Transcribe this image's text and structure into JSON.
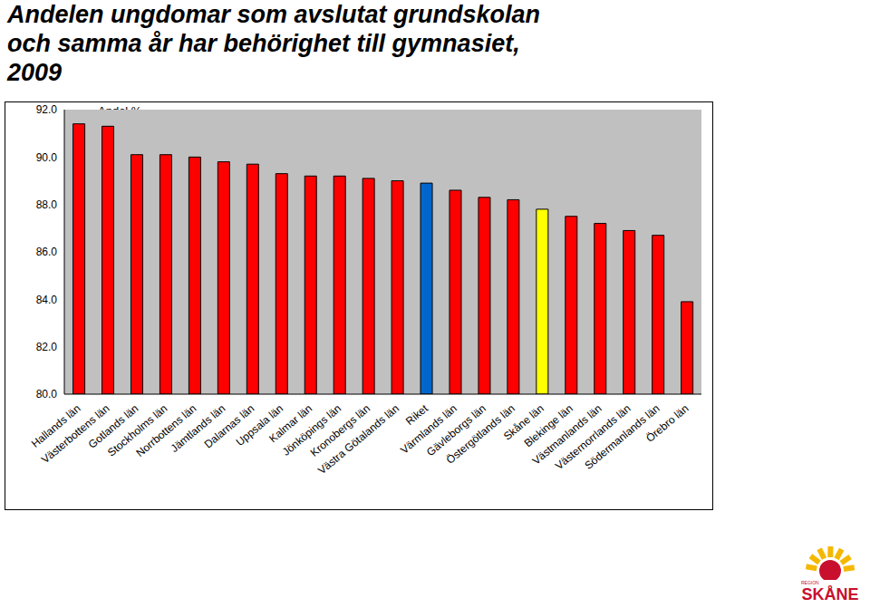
{
  "chart_data": {
    "type": "bar",
    "title": "Andelen ungdomar som avslutat grundskolan och samma år har behörighet till gymnasiet, 2009",
    "y_label": "Andel %",
    "logo_text": [
      "REGION",
      "SKÅNE"
    ],
    "categories": [
      "Hallands län",
      "Västerbottens län",
      "Gotlands län",
      "Stockholms län",
      "Norrbottens län",
      "Jämtlands län",
      "Dalarnas län",
      "Uppsala län",
      "Kalmar län",
      "Jönköpings län",
      "Kronobergs län",
      "Västra Götalands län",
      "Riket",
      "Värmlands län",
      "Gävleborgs län",
      "Östergötlands län",
      "Skåne län",
      "Blekinge län",
      "Västmanlands län",
      "Västernorrlands län",
      "Södermanlands län",
      "Örebro län"
    ],
    "values": [
      91.4,
      91.3,
      90.1,
      90.1,
      90.0,
      89.8,
      89.7,
      89.3,
      89.2,
      89.2,
      89.1,
      89.0,
      88.9,
      88.6,
      88.3,
      88.2,
      87.8,
      87.5,
      87.2,
      86.9,
      86.7,
      83.9
    ],
    "colors": [
      "#ff0000",
      "#ff0000",
      "#ff0000",
      "#ff0000",
      "#ff0000",
      "#ff0000",
      "#ff0000",
      "#ff0000",
      "#ff0000",
      "#ff0000",
      "#ff0000",
      "#ff0000",
      "#0066cc",
      "#ff0000",
      "#ff0000",
      "#ff0000",
      "#ffff00",
      "#ff0000",
      "#ff0000",
      "#ff0000",
      "#ff0000",
      "#ff0000"
    ],
    "ylim": [
      80,
      92
    ],
    "yticks": [
      {
        "value": 80,
        "label": "80.0"
      },
      {
        "value": 82,
        "label": "82.0"
      },
      {
        "value": 84,
        "label": "84.0"
      },
      {
        "value": 86,
        "label": "86.0"
      },
      {
        "value": 88,
        "label": "88.0"
      },
      {
        "value": 90,
        "label": "90.0"
      },
      {
        "value": 92,
        "label": "92.0"
      }
    ],
    "grid": false
  }
}
